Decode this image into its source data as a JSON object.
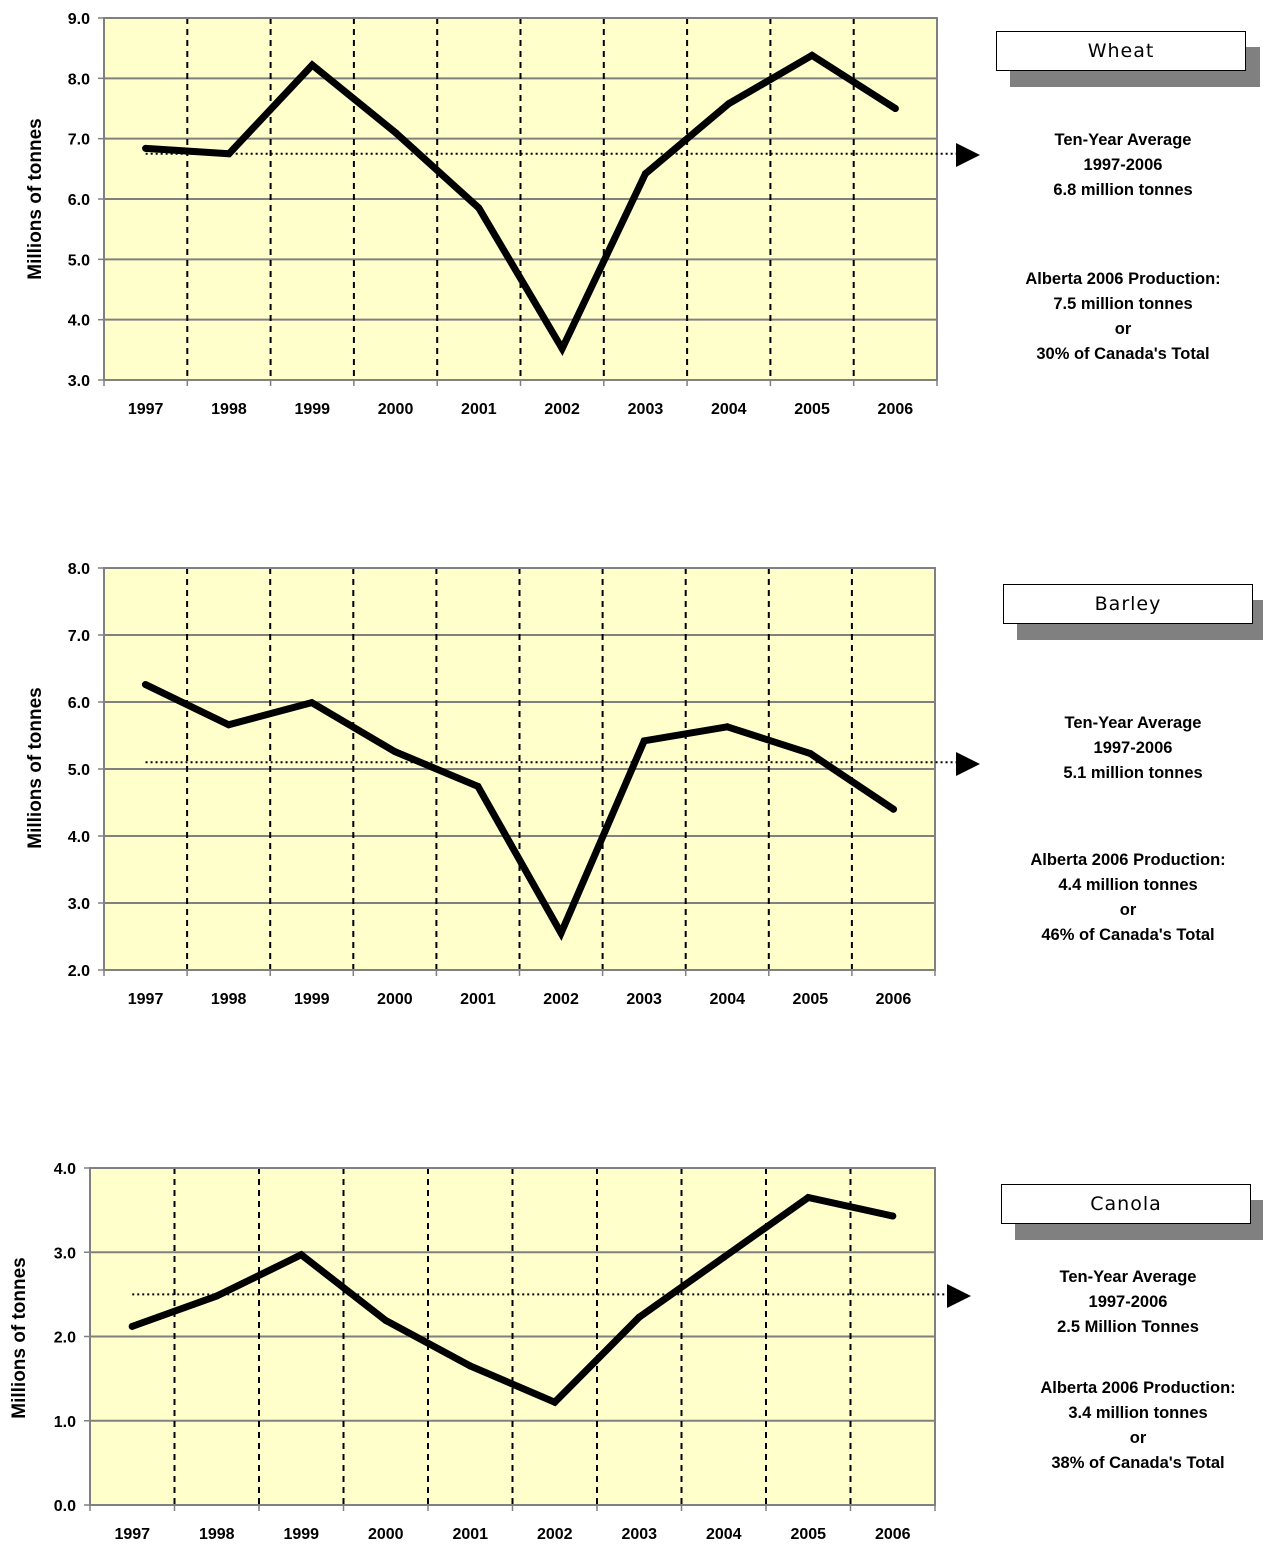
{
  "chart_data": [
    {
      "type": "line",
      "ylabel": "Millions of tonnes",
      "ylim": [
        3.0,
        9.0
      ],
      "yticks": [
        "3.0",
        "4.0",
        "5.0",
        "6.0",
        "7.0",
        "8.0",
        "9.0"
      ],
      "categories": [
        "1997",
        "1998",
        "1999",
        "2000",
        "2001",
        "2002",
        "2003",
        "2004",
        "2005",
        "2006"
      ],
      "series": [
        {
          "name": "Wheat",
          "values": [
            6.84,
            6.75,
            8.22,
            7.1,
            5.85,
            3.52,
            6.42,
            7.58,
            8.38,
            7.5
          ]
        }
      ],
      "average": 6.75,
      "legend": "Wheat",
      "grid": true,
      "plot_background": "#ffffcc",
      "notes": {
        "avg_title": "Ten-Year Average",
        "avg_years": "1997-2006",
        "avg_value": "6.8 million tonnes",
        "prod_title": "Alberta 2006 Production:",
        "prod_value": "7.5 million tonnes",
        "prod_or": "or",
        "prod_share": "30% of Canada's Total"
      }
    },
    {
      "type": "line",
      "ylabel": "Millions of tonnes",
      "ylim": [
        2.0,
        8.0
      ],
      "yticks": [
        "2.0",
        "3.0",
        "4.0",
        "5.0",
        "6.0",
        "7.0",
        "8.0"
      ],
      "categories": [
        "1997",
        "1998",
        "1999",
        "2000",
        "2001",
        "2002",
        "2003",
        "2004",
        "2005",
        "2006"
      ],
      "series": [
        {
          "name": "Barley",
          "values": [
            6.26,
            5.66,
            5.99,
            5.26,
            4.74,
            2.55,
            5.42,
            5.63,
            5.23,
            4.4
          ]
        }
      ],
      "average": 5.1,
      "legend": "Barley",
      "grid": true,
      "plot_background": "#ffffcc",
      "notes": {
        "avg_title": "Ten-Year Average",
        "avg_years": "1997-2006",
        "avg_value": "5.1 million tonnes",
        "prod_title": "Alberta 2006 Production:",
        "prod_value": "4.4 million tonnes",
        "prod_or": "or",
        "prod_share": "46% of Canada's Total"
      }
    },
    {
      "type": "line",
      "ylabel": "Millions of tonnes",
      "ylim": [
        0.0,
        4.0
      ],
      "yticks": [
        "0.0",
        "1.0",
        "2.0",
        "3.0",
        "4.0"
      ],
      "categories": [
        "1997",
        "1998",
        "1999",
        "2000",
        "2001",
        "2002",
        "2003",
        "2004",
        "2005",
        "2006"
      ],
      "series": [
        {
          "name": "Canola",
          "values": [
            2.12,
            2.48,
            2.97,
            2.19,
            1.65,
            1.22,
            2.23,
            2.94,
            3.65,
            3.43
          ]
        }
      ],
      "average": 2.5,
      "legend": "Canola",
      "grid": true,
      "plot_background": "#ffffcc",
      "notes": {
        "avg_title": "Ten-Year Average",
        "avg_years": "1997-2006",
        "avg_value": "2.5 Million Tonnes",
        "prod_title": "Alberta 2006 Production:",
        "prod_value": "3.4 million tonnes",
        "prod_or": "or",
        "prod_share": "38% of Canada's Total"
      }
    }
  ]
}
